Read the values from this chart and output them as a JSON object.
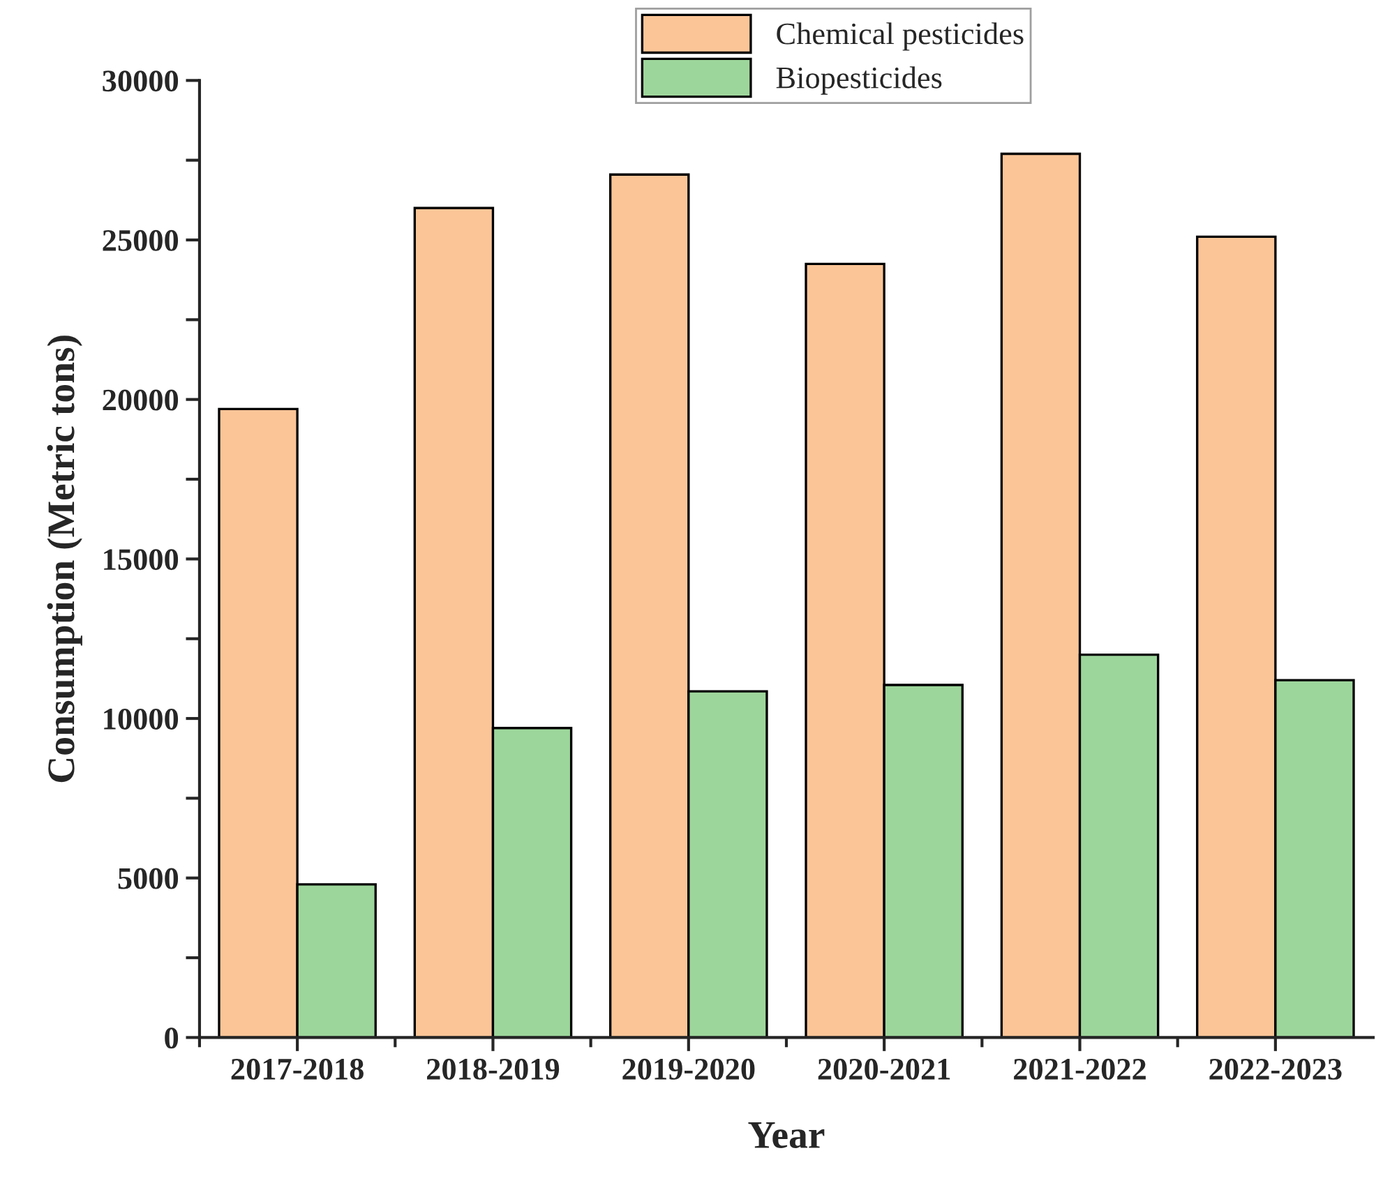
{
  "chart_data": {
    "type": "bar",
    "xlabel": "Year",
    "ylabel": "Consumption (Metric tons)",
    "categories": [
      "2017-2018",
      "2018-2019",
      "2019-2020",
      "2020-2021",
      "2021-2022",
      "2022-2023"
    ],
    "series": [
      {
        "name": "Chemical pesticides",
        "color": "#fcc597",
        "values": [
          19700,
          26000,
          27050,
          24250,
          27700,
          25100
        ]
      },
      {
        "name": "Biopesticides",
        "color": "#9dd69b",
        "values": [
          4800,
          9700,
          10850,
          11050,
          12000,
          11200
        ]
      }
    ],
    "ylim": [
      0,
      30000
    ],
    "yticks": [
      0,
      {
        "value": 2500,
        "label": null
      },
      5000,
      {
        "value": 7500,
        "label": null
      },
      10000,
      {
        "value": 12500,
        "label": null
      },
      15000,
      {
        "value": 17500,
        "label": null
      },
      20000,
      {
        "value": 22500,
        "label": null
      },
      25000,
      {
        "value": 27500,
        "label": null
      },
      30000
    ],
    "grid": false,
    "legend": "top"
  }
}
